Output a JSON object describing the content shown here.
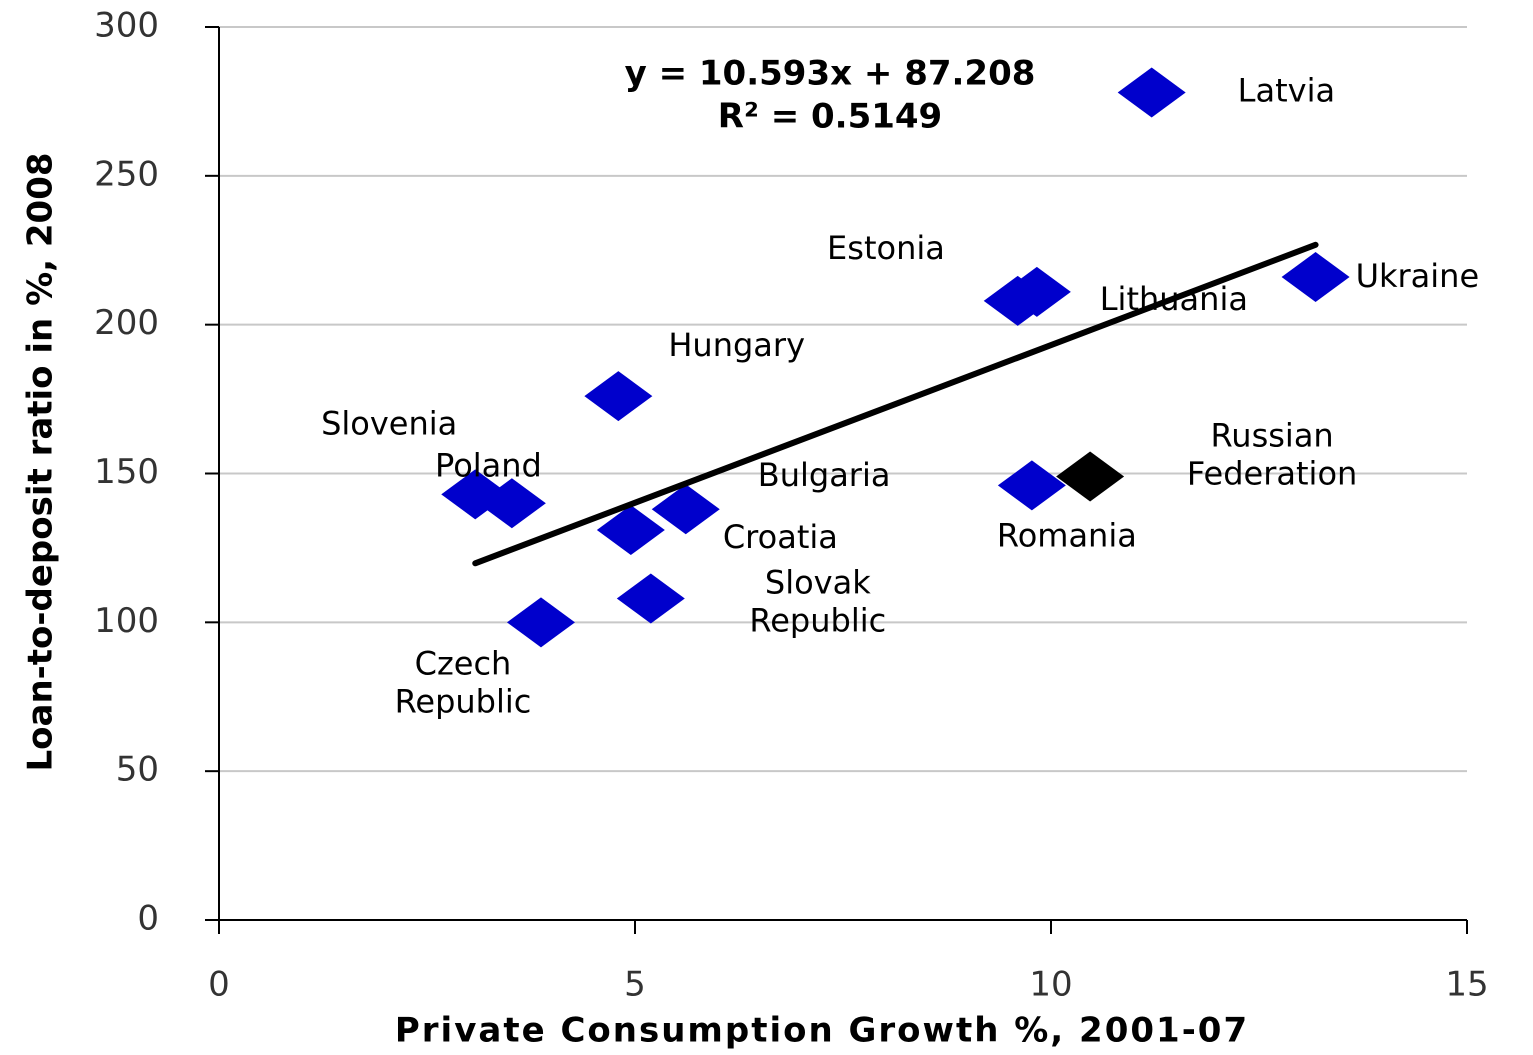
{
  "chart_data": {
    "type": "scatter",
    "x_label": "Private Consumption Growth %, 2001-07",
    "y_label": "Loan-to-deposit ratio in %, 2008",
    "xlim": [
      0,
      15
    ],
    "xticks": [
      0,
      5,
      10,
      15
    ],
    "ylim": [
      0,
      300
    ],
    "yticks": [
      0,
      50,
      100,
      150,
      200,
      250,
      300
    ],
    "grid": true,
    "x": [
      11.21,
      9.83,
      9.6,
      13.18,
      4.8,
      3.08,
      3.52,
      5.61,
      4.95,
      5.19,
      3.87,
      9.77,
      10.47
    ],
    "values": [
      278,
      211,
      208,
      216,
      176,
      143,
      140,
      138,
      131,
      108,
      100,
      146,
      149
    ],
    "labels": [
      "Latvia",
      "Estonia",
      "Lithuania",
      "Ukraine",
      "Hungary",
      "Slovenia",
      "Poland",
      "Bulgaria",
      "Croatia",
      [
        "Slovak",
        "Republic"
      ],
      [
        "Czech",
        "Republic"
      ],
      "Romania",
      [
        "Russian",
        "Federation"
      ]
    ],
    "colors": [
      "#0000cc",
      "#0000cc",
      "#0000cc",
      "#0000cc",
      "#0000cc",
      "#0000cc",
      "#0000cc",
      "#0000cc",
      "#0000cc",
      "#0000cc",
      "#0000cc",
      "#0000cc",
      "#000000"
    ],
    "trendline": {
      "slope": 10.593,
      "intercept": 87.208,
      "color": "#000000"
    },
    "annotations": [
      "y = 10.593x  + 87.208",
      "R² = 0.5149"
    ]
  }
}
